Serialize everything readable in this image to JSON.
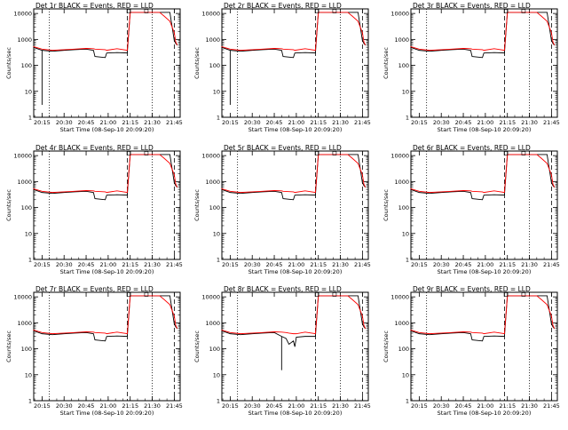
{
  "colors": {
    "events": "#000000",
    "lld": "#ff0000",
    "axes": "#000000",
    "background": "#ffffff"
  },
  "shared": {
    "ylabel": "Counts/sec",
    "xlabel": "Start Time (08-Sep-10 20:09:20)",
    "x_tick_labels": [
      "20:15",
      "20:30",
      "20:45",
      "21:00",
      "21:15",
      "21:30",
      "21:45"
    ],
    "y_tick_labels": [
      "1",
      "10",
      "100",
      "1000",
      "10000"
    ],
    "y_scale": "log",
    "ylim": [
      1,
      15000
    ],
    "xlim": [
      "20:09:20",
      "21:49:00"
    ]
  },
  "chart_data": [
    {
      "type": "line",
      "title": "Det 1r BLACK = Events, RED = LLD",
      "x_times": [
        "20:09",
        "20:15",
        "20:22",
        "20:30",
        "20:37",
        "20:45",
        "20:50",
        "20:51",
        "20:58",
        "20:59",
        "21:06",
        "21:13",
        "21:15",
        "21:21",
        "21:26",
        "21:27",
        "21:35",
        "21:38",
        "21:42",
        "21:45",
        "21:46",
        "21:47"
      ],
      "vlines": [
        {
          "time": "20:20",
          "style": "dotted"
        },
        {
          "time": "21:13",
          "style": "dashed"
        },
        {
          "time": "21:30",
          "style": "dotted"
        },
        {
          "time": "21:45",
          "style": "dashed"
        }
      ],
      "series": [
        {
          "values": [
            500,
            380,
            350,
            380,
            400,
            420,
            380,
            220,
            200,
            300,
            310,
            300,
            11000,
            11000,
            11000,
            11000,
            11000,
            11000,
            11000,
            900,
            700,
            600
          ],
          "spikes": [
            {
              "time": "20:15",
              "low": 3
            }
          ]
        },
        {
          "values": [
            530,
            420,
            380,
            400,
            420,
            450,
            440,
            420,
            400,
            380,
            440,
            380,
            11000,
            11000,
            11000,
            11000,
            11000,
            8000,
            5000,
            1800,
            800,
            600
          ]
        }
      ]
    },
    {
      "type": "line",
      "title": "Det 2r BLACK = Events, RED = LLD",
      "x_times": [
        "20:09",
        "20:15",
        "20:22",
        "20:30",
        "20:37",
        "20:45",
        "20:50",
        "20:51",
        "20:58",
        "20:59",
        "21:06",
        "21:13",
        "21:15",
        "21:21",
        "21:26",
        "21:27",
        "21:35",
        "21:38",
        "21:42",
        "21:45",
        "21:46",
        "21:47"
      ],
      "vlines": [
        {
          "time": "20:20",
          "style": "dotted"
        },
        {
          "time": "21:13",
          "style": "dashed"
        },
        {
          "time": "21:30",
          "style": "dotted"
        },
        {
          "time": "21:45",
          "style": "dashed"
        }
      ],
      "series": [
        {
          "values": [
            500,
            380,
            350,
            380,
            400,
            420,
            380,
            220,
            200,
            300,
            310,
            300,
            11000,
            11000,
            11000,
            11000,
            11000,
            11000,
            11000,
            900,
            700,
            600
          ],
          "spikes": [
            {
              "time": "20:15",
              "low": 3
            }
          ]
        },
        {
          "values": [
            530,
            420,
            380,
            400,
            420,
            450,
            440,
            420,
            400,
            380,
            440,
            380,
            11000,
            11000,
            11000,
            11000,
            11000,
            8000,
            5000,
            1800,
            800,
            600
          ]
        }
      ]
    },
    {
      "type": "line",
      "title": "Det 3r BLACK = Events, RED = LLD",
      "x_times": [
        "20:09",
        "20:15",
        "20:22",
        "20:30",
        "20:37",
        "20:45",
        "20:50",
        "20:51",
        "20:58",
        "20:59",
        "21:06",
        "21:13",
        "21:15",
        "21:21",
        "21:26",
        "21:27",
        "21:35",
        "21:38",
        "21:42",
        "21:45",
        "21:46",
        "21:47"
      ],
      "vlines": [
        {
          "time": "20:20",
          "style": "dotted"
        },
        {
          "time": "21:13",
          "style": "dashed"
        },
        {
          "time": "21:30",
          "style": "dotted"
        },
        {
          "time": "21:45",
          "style": "dashed"
        }
      ],
      "series": [
        {
          "values": [
            500,
            380,
            350,
            380,
            400,
            420,
            380,
            220,
            200,
            300,
            310,
            300,
            11000,
            11000,
            11000,
            11000,
            11000,
            11000,
            11000,
            900,
            700,
            600
          ],
          "spikes": []
        },
        {
          "values": [
            530,
            420,
            380,
            400,
            420,
            450,
            440,
            420,
            400,
            380,
            440,
            380,
            11000,
            11000,
            11000,
            11000,
            11000,
            8000,
            5000,
            1800,
            800,
            600
          ]
        }
      ]
    },
    {
      "type": "line",
      "title": "Det 4r BLACK = Events, RED = LLD",
      "x_times": [
        "20:09",
        "20:15",
        "20:22",
        "20:30",
        "20:37",
        "20:45",
        "20:50",
        "20:51",
        "20:58",
        "20:59",
        "21:06",
        "21:13",
        "21:15",
        "21:21",
        "21:26",
        "21:27",
        "21:35",
        "21:38",
        "21:42",
        "21:45",
        "21:46",
        "21:47"
      ],
      "vlines": [
        {
          "time": "20:20",
          "style": "dotted"
        },
        {
          "time": "21:13",
          "style": "dashed"
        },
        {
          "time": "21:30",
          "style": "dotted"
        },
        {
          "time": "21:45",
          "style": "dashed"
        }
      ],
      "series": [
        {
          "values": [
            500,
            380,
            350,
            380,
            400,
            420,
            380,
            220,
            200,
            300,
            310,
            300,
            11000,
            11000,
            11000,
            11000,
            11000,
            11000,
            11000,
            900,
            700,
            600
          ],
          "spikes": []
        },
        {
          "values": [
            530,
            420,
            380,
            400,
            420,
            450,
            440,
            420,
            400,
            380,
            440,
            380,
            11000,
            11000,
            11000,
            11000,
            11000,
            8000,
            5000,
            1800,
            800,
            600
          ]
        }
      ]
    },
    {
      "type": "line",
      "title": "Det 5r BLACK = Events, RED = LLD",
      "x_times": [
        "20:09",
        "20:15",
        "20:22",
        "20:30",
        "20:37",
        "20:45",
        "20:50",
        "20:51",
        "20:58",
        "20:59",
        "21:06",
        "21:13",
        "21:15",
        "21:21",
        "21:26",
        "21:27",
        "21:35",
        "21:38",
        "21:42",
        "21:45",
        "21:46",
        "21:47"
      ],
      "vlines": [
        {
          "time": "20:20",
          "style": "dotted"
        },
        {
          "time": "21:13",
          "style": "dashed"
        },
        {
          "time": "21:30",
          "style": "dotted"
        },
        {
          "time": "21:45",
          "style": "dashed"
        }
      ],
      "series": [
        {
          "values": [
            500,
            380,
            350,
            380,
            400,
            420,
            380,
            220,
            200,
            300,
            310,
            300,
            11000,
            11000,
            11000,
            11000,
            11000,
            11000,
            11000,
            900,
            700,
            600
          ],
          "spikes": []
        },
        {
          "values": [
            530,
            420,
            380,
            400,
            420,
            450,
            440,
            420,
            400,
            380,
            440,
            380,
            11000,
            11000,
            11000,
            11000,
            11000,
            8000,
            5000,
            1800,
            800,
            600
          ]
        }
      ]
    },
    {
      "type": "line",
      "title": "Det 6r BLACK = Events, RED = LLD",
      "x_times": [
        "20:09",
        "20:15",
        "20:22",
        "20:30",
        "20:37",
        "20:45",
        "20:50",
        "20:51",
        "20:58",
        "20:59",
        "21:06",
        "21:13",
        "21:15",
        "21:21",
        "21:26",
        "21:27",
        "21:35",
        "21:38",
        "21:42",
        "21:45",
        "21:46",
        "21:47"
      ],
      "vlines": [
        {
          "time": "20:20",
          "style": "dotted"
        },
        {
          "time": "21:13",
          "style": "dashed"
        },
        {
          "time": "21:30",
          "style": "dotted"
        },
        {
          "time": "21:45",
          "style": "dashed"
        }
      ],
      "series": [
        {
          "values": [
            500,
            380,
            350,
            380,
            400,
            420,
            380,
            220,
            200,
            300,
            310,
            300,
            11000,
            11000,
            11000,
            11000,
            11000,
            11000,
            11000,
            900,
            700,
            600
          ],
          "spikes": []
        },
        {
          "values": [
            530,
            420,
            380,
            400,
            420,
            450,
            440,
            420,
            400,
            380,
            440,
            380,
            11000,
            11000,
            11000,
            11000,
            11000,
            8000,
            5000,
            1800,
            800,
            600
          ]
        }
      ]
    },
    {
      "type": "line",
      "title": "Det 7r BLACK = Events, RED = LLD",
      "x_times": [
        "20:09",
        "20:15",
        "20:22",
        "20:30",
        "20:37",
        "20:45",
        "20:50",
        "20:51",
        "20:58",
        "20:59",
        "21:06",
        "21:13",
        "21:15",
        "21:21",
        "21:26",
        "21:27",
        "21:35",
        "21:38",
        "21:42",
        "21:45",
        "21:46",
        "21:47"
      ],
      "vlines": [
        {
          "time": "20:20",
          "style": "dotted"
        },
        {
          "time": "21:13",
          "style": "dashed"
        },
        {
          "time": "21:30",
          "style": "dotted"
        },
        {
          "time": "21:45",
          "style": "dashed"
        }
      ],
      "series": [
        {
          "values": [
            500,
            380,
            350,
            380,
            400,
            420,
            380,
            220,
            200,
            300,
            310,
            300,
            11000,
            11000,
            11000,
            11000,
            11000,
            11000,
            11000,
            900,
            700,
            600
          ],
          "spikes": []
        },
        {
          "values": [
            530,
            420,
            380,
            400,
            420,
            450,
            440,
            420,
            400,
            380,
            440,
            380,
            11000,
            11000,
            11000,
            11000,
            11000,
            8000,
            5000,
            1800,
            800,
            600
          ]
        }
      ]
    },
    {
      "type": "line",
      "title": "Det 8r BLACK = Events, RED = LLD",
      "x_times": [
        "20:09",
        "20:15",
        "20:22",
        "20:30",
        "20:37",
        "20:45",
        "20:50",
        "20:53",
        "20:55",
        "20:58",
        "20:59",
        "21:00",
        "21:06",
        "21:13",
        "21:15",
        "21:21",
        "21:26",
        "21:27",
        "21:35",
        "21:38",
        "21:42",
        "21:45",
        "21:46",
        "21:47"
      ],
      "vlines": [
        {
          "time": "20:20",
          "style": "dotted"
        },
        {
          "time": "21:13",
          "style": "dashed"
        },
        {
          "time": "21:30",
          "style": "dotted"
        },
        {
          "time": "21:45",
          "style": "dashed"
        }
      ],
      "series": [
        {
          "values": [
            500,
            380,
            350,
            380,
            400,
            420,
            300,
            250,
            150,
            200,
            120,
            280,
            300,
            300,
            11000,
            11000,
            11000,
            11000,
            11000,
            11000,
            11000,
            900,
            700,
            600
          ],
          "spikes": [
            {
              "time": "20:50",
              "low": 15
            }
          ]
        },
        {
          "values": [
            530,
            420,
            380,
            400,
            420,
            450,
            440,
            420,
            400,
            380,
            380,
            380,
            440,
            380,
            11000,
            11000,
            11000,
            11000,
            11000,
            8000,
            5000,
            1800,
            800,
            600
          ]
        }
      ]
    },
    {
      "type": "line",
      "title": "Det 9r BLACK = Events, RED = LLD",
      "x_times": [
        "20:09",
        "20:15",
        "20:22",
        "20:30",
        "20:37",
        "20:45",
        "20:50",
        "20:51",
        "20:58",
        "20:59",
        "21:06",
        "21:13",
        "21:15",
        "21:21",
        "21:26",
        "21:27",
        "21:35",
        "21:38",
        "21:42",
        "21:45",
        "21:46",
        "21:47"
      ],
      "vlines": [
        {
          "time": "20:20",
          "style": "dotted"
        },
        {
          "time": "21:13",
          "style": "dashed"
        },
        {
          "time": "21:30",
          "style": "dotted"
        },
        {
          "time": "21:45",
          "style": "dashed"
        }
      ],
      "series": [
        {
          "values": [
            500,
            380,
            350,
            380,
            400,
            420,
            380,
            220,
            200,
            300,
            310,
            300,
            11000,
            11000,
            11000,
            11000,
            11000,
            11000,
            11000,
            900,
            700,
            600
          ],
          "spikes": []
        },
        {
          "values": [
            530,
            420,
            380,
            400,
            420,
            450,
            440,
            420,
            400,
            380,
            440,
            380,
            11000,
            11000,
            11000,
            11000,
            11000,
            8000,
            5000,
            1800,
            800,
            600
          ]
        }
      ]
    }
  ]
}
